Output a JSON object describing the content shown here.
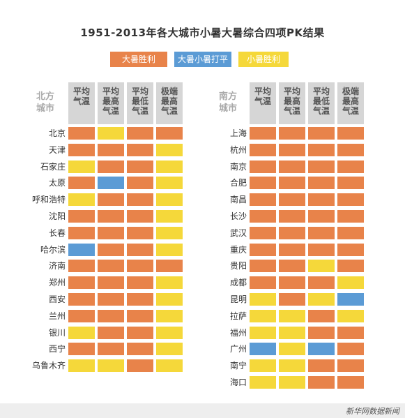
{
  "title": "1951-2013年各大城市小暑大暑综合四项PK结果",
  "legend": [
    {
      "key": "D",
      "label": "大暑胜利",
      "color": "#e8834a"
    },
    {
      "key": "T",
      "label": "大暑小暑打平",
      "color": "#5b9bd5"
    },
    {
      "key": "X",
      "label": "小暑胜利",
      "color": "#f5d83a"
    }
  ],
  "chart_data": {
    "type": "heatmap",
    "title": "1951-2013年各大城市小暑大暑综合四项PK结果",
    "value_legend": {
      "D": "大暑胜利",
      "T": "大暑小暑打平",
      "X": "小暑胜利"
    },
    "columns": [
      "平均气温",
      "平均最高气温",
      "平均最低气温",
      "极端最高气温"
    ],
    "groups": [
      {
        "name": "北方城市",
        "rows": [
          {
            "city": "北京",
            "values": [
              "D",
              "X",
              "D",
              "D"
            ]
          },
          {
            "city": "天津",
            "values": [
              "D",
              "D",
              "D",
              "X"
            ]
          },
          {
            "city": "石家庄",
            "values": [
              "X",
              "D",
              "D",
              "X"
            ]
          },
          {
            "city": "太原",
            "values": [
              "D",
              "T",
              "D",
              "X"
            ]
          },
          {
            "city": "呼和浩特",
            "values": [
              "X",
              "D",
              "D",
              "X"
            ]
          },
          {
            "city": "沈阳",
            "values": [
              "D",
              "D",
              "D",
              "X"
            ]
          },
          {
            "city": "长春",
            "values": [
              "D",
              "D",
              "D",
              "X"
            ]
          },
          {
            "city": "哈尔滨",
            "values": [
              "T",
              "D",
              "D",
              "X"
            ]
          },
          {
            "city": "济南",
            "values": [
              "D",
              "D",
              "D",
              "D"
            ]
          },
          {
            "city": "郑州",
            "values": [
              "D",
              "D",
              "D",
              "X"
            ]
          },
          {
            "city": "西安",
            "values": [
              "D",
              "D",
              "D",
              "X"
            ]
          },
          {
            "city": "兰州",
            "values": [
              "D",
              "D",
              "D",
              "X"
            ]
          },
          {
            "city": "银川",
            "values": [
              "X",
              "D",
              "D",
              "X"
            ]
          },
          {
            "city": "西宁",
            "values": [
              "D",
              "D",
              "D",
              "X"
            ]
          },
          {
            "city": "乌鲁木齐",
            "values": [
              "X",
              "X",
              "D",
              "X"
            ]
          }
        ]
      },
      {
        "name": "南方城市",
        "rows": [
          {
            "city": "上海",
            "values": [
              "D",
              "D",
              "D",
              "D"
            ]
          },
          {
            "city": "杭州",
            "values": [
              "D",
              "D",
              "D",
              "D"
            ]
          },
          {
            "city": "南京",
            "values": [
              "D",
              "D",
              "D",
              "D"
            ]
          },
          {
            "city": "合肥",
            "values": [
              "D",
              "D",
              "D",
              "D"
            ]
          },
          {
            "city": "南昌",
            "values": [
              "D",
              "D",
              "D",
              "D"
            ]
          },
          {
            "city": "长沙",
            "values": [
              "D",
              "D",
              "D",
              "D"
            ]
          },
          {
            "city": "武汉",
            "values": [
              "D",
              "D",
              "D",
              "D"
            ]
          },
          {
            "city": "重庆",
            "values": [
              "D",
              "D",
              "D",
              "D"
            ]
          },
          {
            "city": "贵阳",
            "values": [
              "D",
              "D",
              "X",
              "D"
            ]
          },
          {
            "city": "成都",
            "values": [
              "D",
              "D",
              "D",
              "X"
            ]
          },
          {
            "city": "昆明",
            "values": [
              "X",
              "D",
              "X",
              "T"
            ]
          },
          {
            "city": "拉萨",
            "values": [
              "X",
              "X",
              "D",
              "X"
            ]
          },
          {
            "city": "福州",
            "values": [
              "X",
              "X",
              "D",
              "D"
            ]
          },
          {
            "city": "广州",
            "values": [
              "T",
              "X",
              "T",
              "D"
            ]
          },
          {
            "city": "南宁",
            "values": [
              "X",
              "X",
              "D",
              "D"
            ]
          },
          {
            "city": "海口",
            "values": [
              "X",
              "X",
              "D",
              "D"
            ]
          }
        ]
      }
    ]
  },
  "columns_display": [
    [
      "平均",
      "气温"
    ],
    [
      "平均",
      "最高",
      "气温"
    ],
    [
      "平均",
      "最低",
      "气温"
    ],
    [
      "极端",
      "最高",
      "气温"
    ]
  ],
  "group_labels": {
    "north": [
      "北方",
      "城市"
    ],
    "south": [
      "南方",
      "城市"
    ]
  },
  "footer": "新华网数据新闻"
}
